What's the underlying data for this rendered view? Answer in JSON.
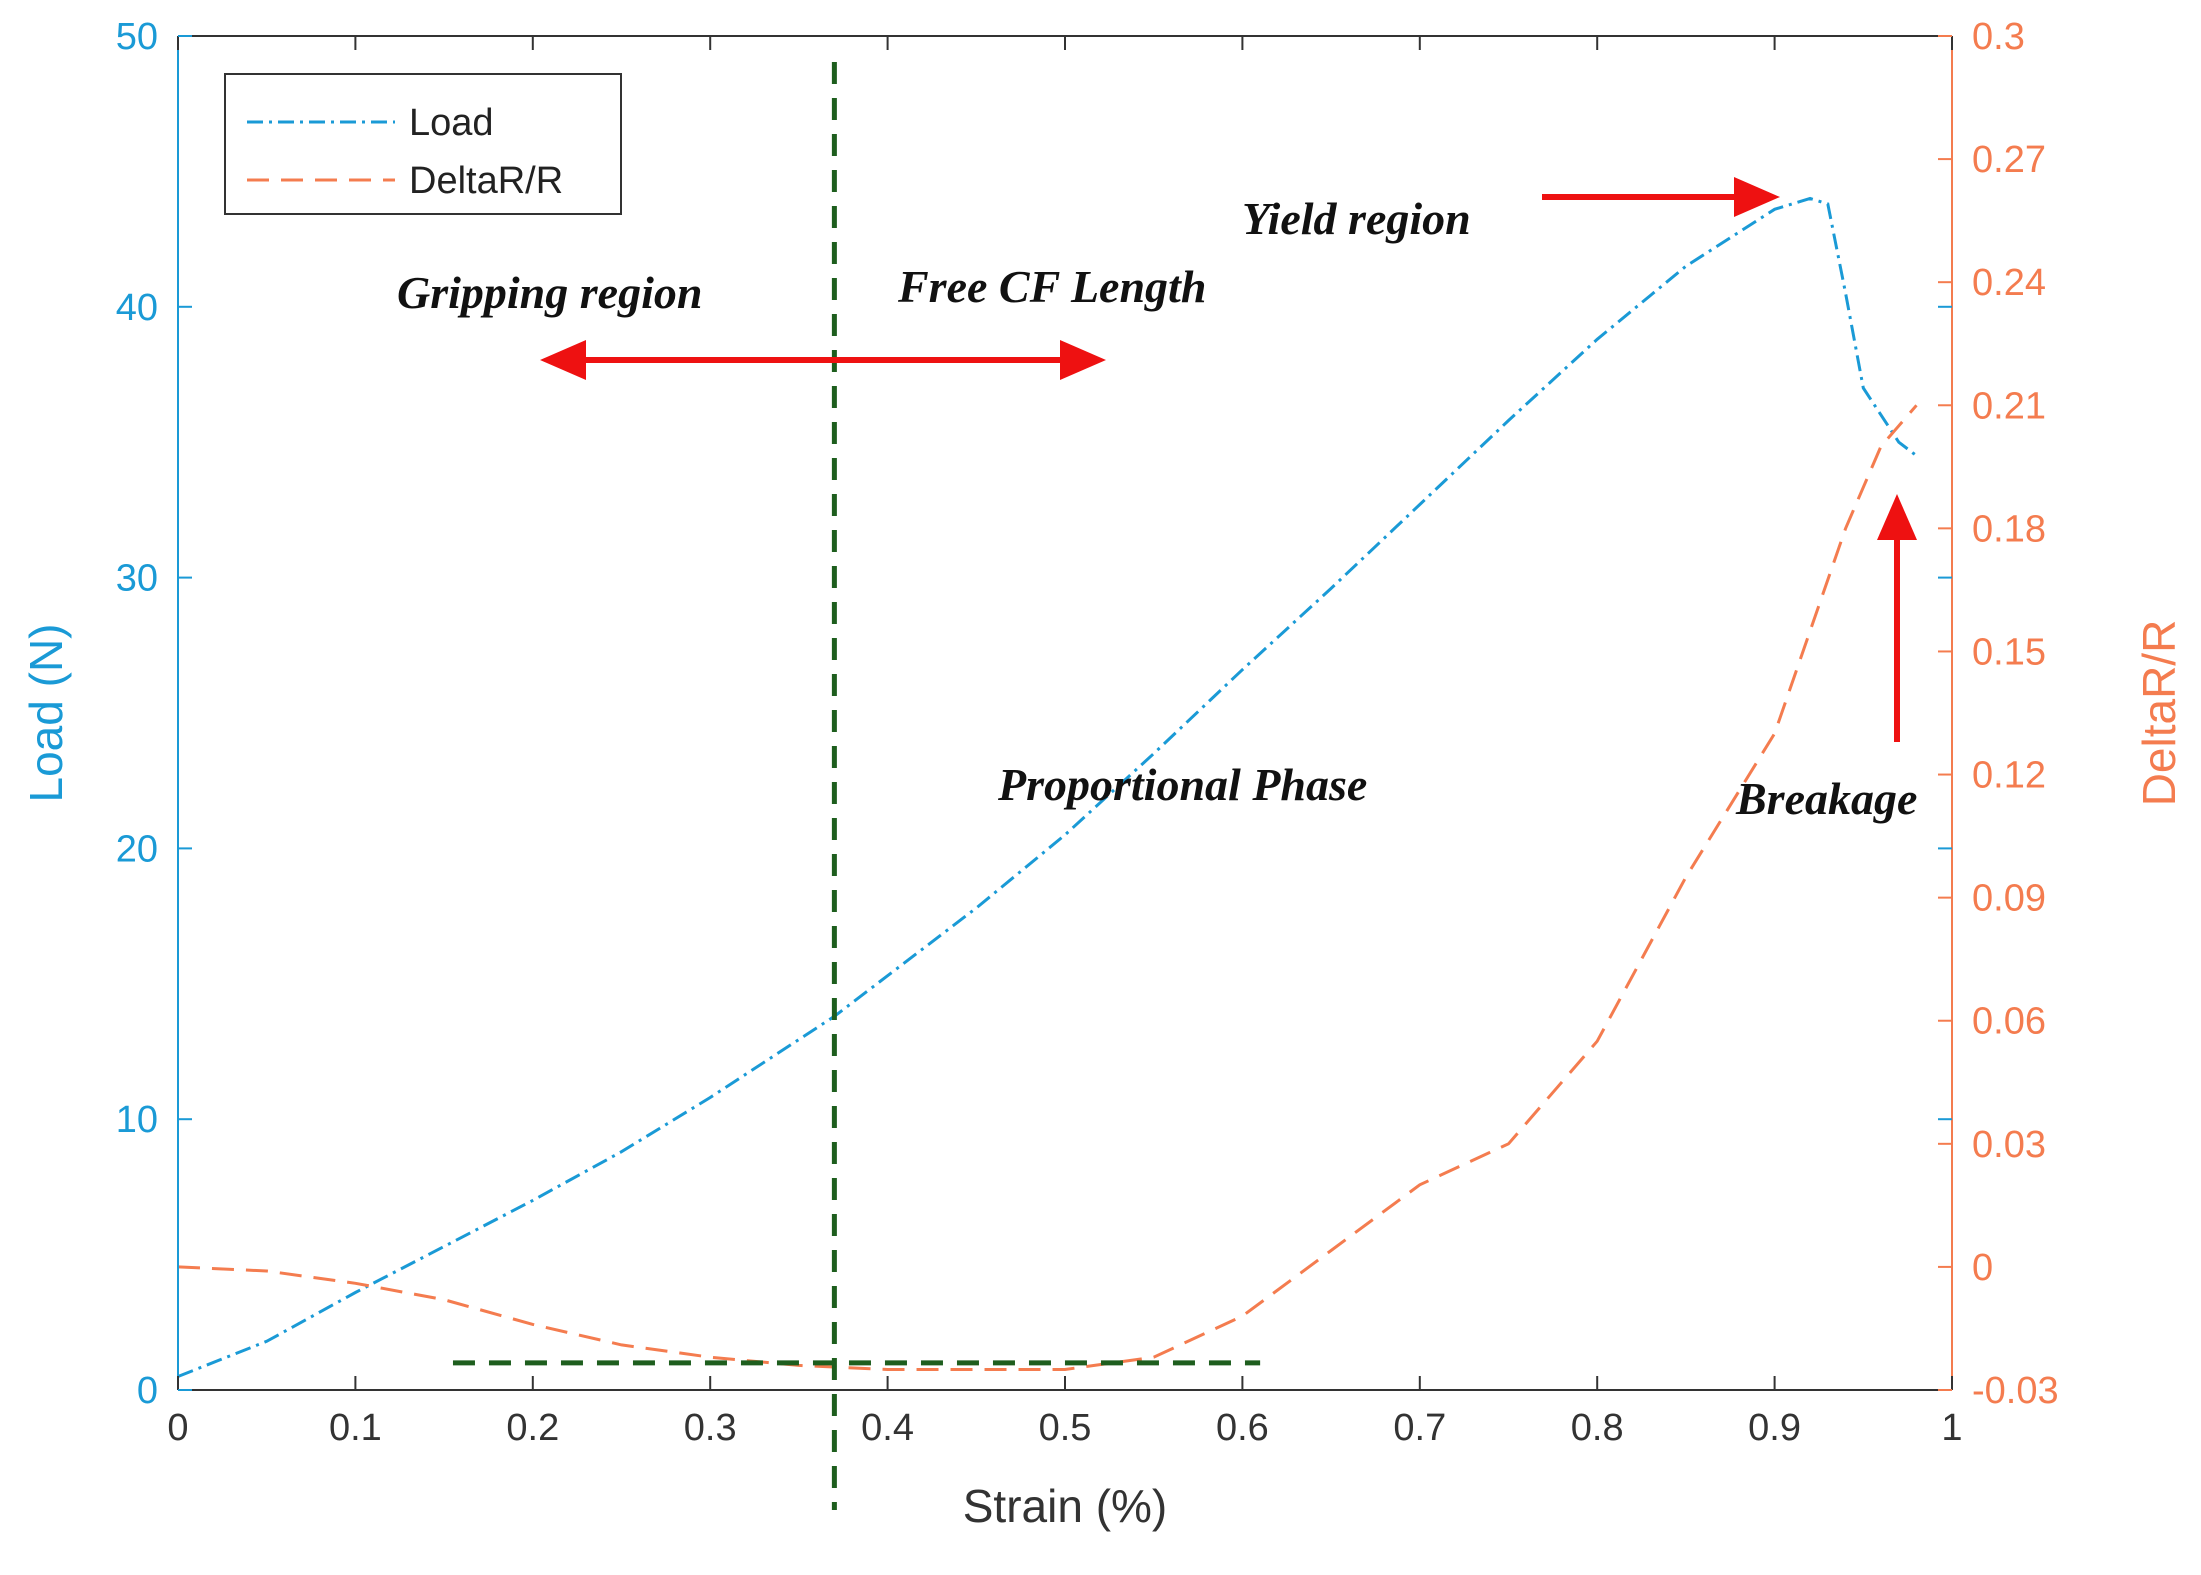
{
  "chart_data": {
    "type": "line",
    "xlabel": "Strain (%)",
    "ylabel_left": "Load (N)",
    "ylabel_right": "DeltaR/R",
    "xlim": [
      0,
      1
    ],
    "ylim_left": [
      0,
      50
    ],
    "ylim_right": [
      -0.03,
      0.3
    ],
    "x_ticks": [
      "0",
      "0.1",
      "0.2",
      "0.3",
      "0.4",
      "0.5",
      "0.6",
      "0.7",
      "0.8",
      "0.9",
      "1"
    ],
    "y_left_ticks": [
      "0",
      "10",
      "20",
      "30",
      "40",
      "50"
    ],
    "y_right_ticks": [
      "-0.03",
      "0",
      "0.03",
      "0.06",
      "0.09",
      "0.12",
      "0.15",
      "0.18",
      "0.21",
      "0.24",
      "0.27",
      "0.3"
    ],
    "colors": {
      "load": "#1a9ad6",
      "deltar": "#f47c4f",
      "vline": "#1e5e1e",
      "arrow": "#ee1111",
      "left_axis": "#1a9ad6",
      "right_axis": "#f47c4f"
    },
    "legend": {
      "placement": "top-left",
      "entries": [
        "Load",
        "DeltaR/R"
      ]
    },
    "series": [
      {
        "name": "Load",
        "axis": "left",
        "x": [
          0,
          0.05,
          0.1,
          0.15,
          0.2,
          0.25,
          0.3,
          0.37,
          0.4,
          0.45,
          0.5,
          0.55,
          0.6,
          0.65,
          0.7,
          0.75,
          0.8,
          0.85,
          0.9,
          0.92,
          0.93,
          0.94,
          0.95,
          0.97,
          0.98
        ],
        "values": [
          0.5,
          1.8,
          3.6,
          5.3,
          7.0,
          8.8,
          10.8,
          13.8,
          15.3,
          17.8,
          20.5,
          23.5,
          26.6,
          29.6,
          32.7,
          35.8,
          38.8,
          41.5,
          43.6,
          44.0,
          43.8,
          40.5,
          37.0,
          35.0,
          34.5
        ]
      },
      {
        "name": "DeltaR/R",
        "axis": "right",
        "x": [
          0,
          0.05,
          0.1,
          0.15,
          0.2,
          0.25,
          0.3,
          0.35,
          0.4,
          0.45,
          0.5,
          0.55,
          0.6,
          0.65,
          0.7,
          0.75,
          0.8,
          0.85,
          0.9,
          0.92,
          0.94,
          0.95,
          0.96,
          0.97,
          0.98
        ],
        "values": [
          0,
          -0.001,
          -0.004,
          -0.008,
          -0.014,
          -0.019,
          -0.022,
          -0.024,
          -0.025,
          -0.025,
          -0.025,
          -0.022,
          -0.012,
          0.004,
          0.02,
          0.03,
          0.055,
          0.095,
          0.13,
          0.155,
          0.18,
          0.19,
          0.2,
          0.205,
          0.21
        ]
      }
    ],
    "annotations": {
      "gripping_region": "Gripping region",
      "free_cf_length": "Free CF Length",
      "yield_region": "Yield region",
      "proportional_phase": "Proportional Phase",
      "breakage": "Breakage"
    },
    "vertical_line_x": 0.37,
    "horizontal_dashed": {
      "y_left": 1.0,
      "x_from": 0.155,
      "x_to": 0.61
    }
  }
}
